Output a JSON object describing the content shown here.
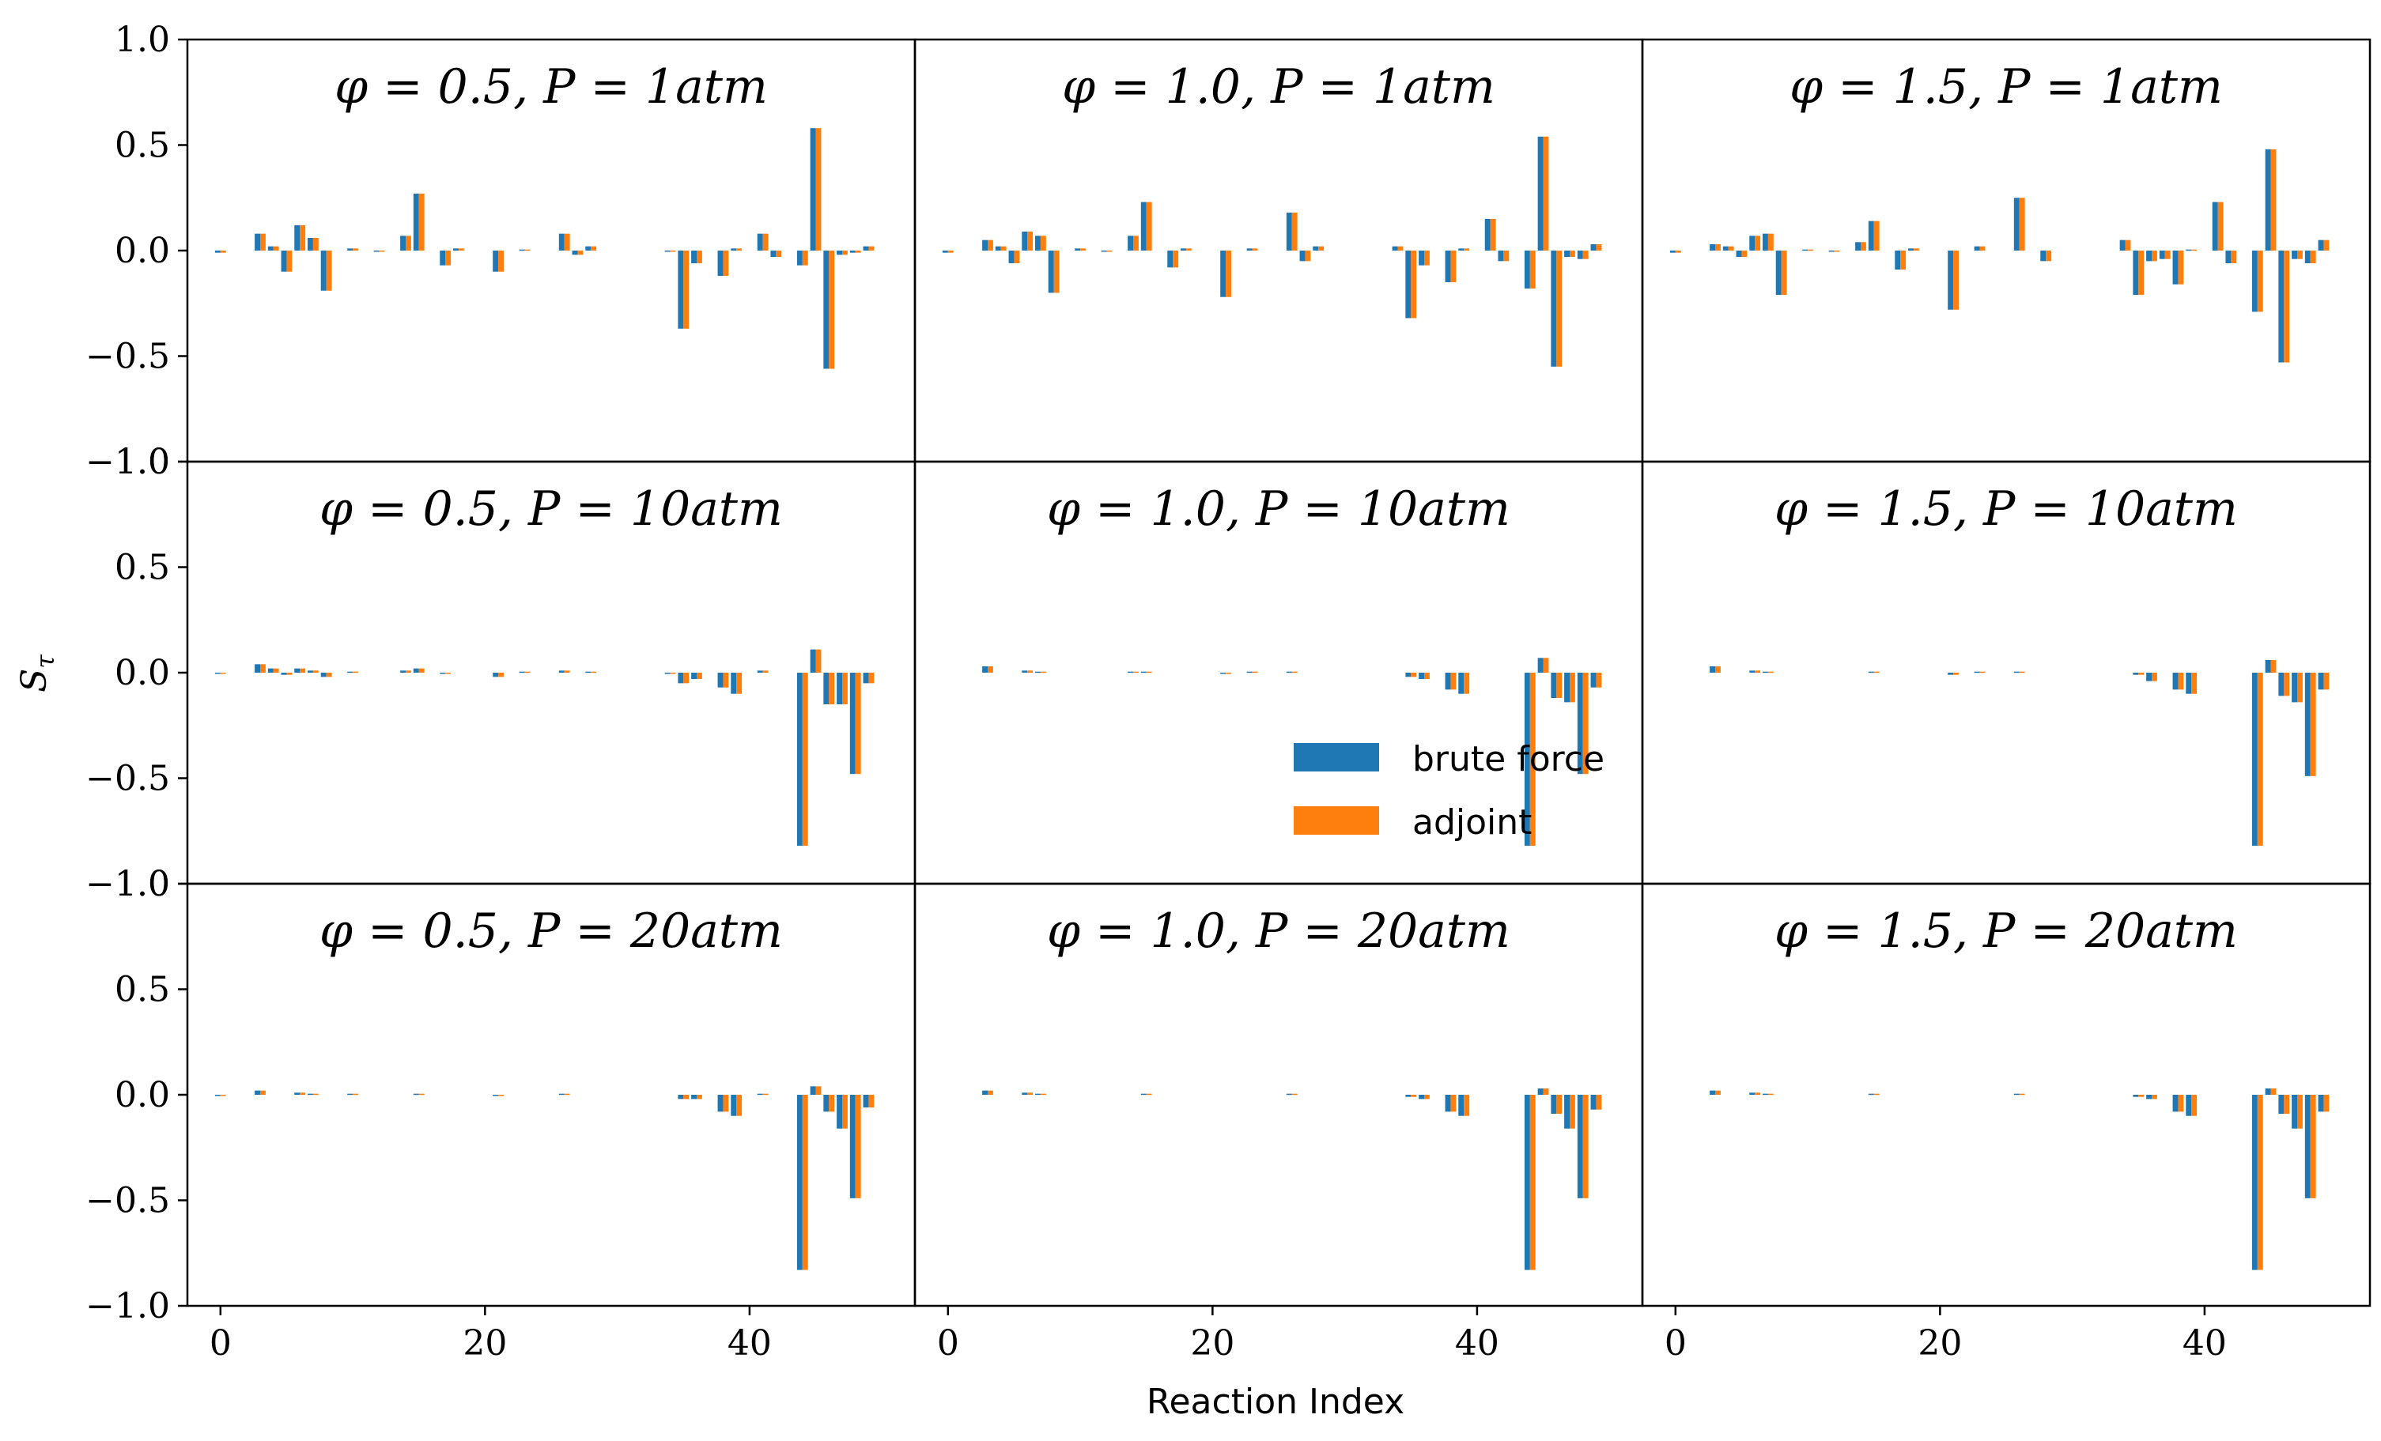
{
  "chart_data": {
    "type": "bar",
    "ylabel": "S_τ",
    "ylabel_main": "S",
    "ylabel_sub": "τ",
    "xlabel": "Reaction Index",
    "ylim": [
      -1.0,
      1.0
    ],
    "xlim": [
      -2.5,
      52.5
    ],
    "yticks": [
      -1.0,
      -0.5,
      0.0,
      0.5,
      1.0
    ],
    "ytick_labels": [
      "−1.0",
      "−0.5",
      "0.0",
      "0.5",
      "1.0"
    ],
    "xticks": [
      0,
      20,
      40
    ],
    "xtick_labels": [
      "0",
      "20",
      "40"
    ],
    "grid": false,
    "legend": {
      "position": "center-right",
      "entries": [
        {
          "name": "brute force",
          "color": "#1f77b4"
        },
        {
          "name": "adjoint",
          "color": "#ff7f0e"
        }
      ]
    },
    "colors": {
      "brute_force": "#1f77b4",
      "adjoint": "#ff7f0e"
    },
    "panels": [
      {
        "title": "φ = 0.5, P = 1atm",
        "indices": [
          0,
          3,
          4,
          5,
          6,
          7,
          8,
          10,
          12,
          14,
          15,
          17,
          18,
          21,
          23,
          26,
          27,
          28,
          34,
          35,
          36,
          38,
          39,
          41,
          42,
          44,
          45,
          46,
          47,
          48,
          49
        ],
        "brute_force": [
          -0.01,
          0.08,
          0.02,
          -0.1,
          0.12,
          0.06,
          -0.19,
          0.01,
          -0.005,
          0.07,
          0.27,
          -0.07,
          0.01,
          -0.1,
          0.005,
          0.08,
          -0.02,
          0.02,
          -0.005,
          -0.37,
          -0.06,
          -0.12,
          0.01,
          0.08,
          -0.03,
          -0.07,
          0.58,
          -0.56,
          -0.02,
          -0.01,
          0.02
        ],
        "adjoint": [
          -0.01,
          0.08,
          0.02,
          -0.1,
          0.12,
          0.06,
          -0.19,
          0.01,
          -0.005,
          0.07,
          0.27,
          -0.07,
          0.01,
          -0.1,
          0.005,
          0.08,
          -0.02,
          0.02,
          -0.005,
          -0.37,
          -0.06,
          -0.12,
          0.01,
          0.08,
          -0.03,
          -0.07,
          0.58,
          -0.56,
          -0.02,
          -0.01,
          0.02
        ]
      },
      {
        "title": "φ = 1.0, P = 1atm",
        "indices": [
          0,
          3,
          4,
          5,
          6,
          7,
          8,
          10,
          12,
          14,
          15,
          17,
          18,
          21,
          23,
          26,
          27,
          28,
          34,
          35,
          36,
          38,
          39,
          41,
          42,
          44,
          45,
          46,
          47,
          48,
          49
        ],
        "brute_force": [
          -0.01,
          0.05,
          0.02,
          -0.06,
          0.09,
          0.07,
          -0.2,
          0.01,
          -0.005,
          0.07,
          0.23,
          -0.08,
          0.01,
          -0.22,
          0.01,
          0.18,
          -0.05,
          0.02,
          0.02,
          -0.32,
          -0.07,
          -0.15,
          0.01,
          0.15,
          -0.05,
          -0.18,
          0.54,
          -0.55,
          -0.03,
          -0.04,
          0.03
        ],
        "adjoint": [
          -0.01,
          0.05,
          0.02,
          -0.06,
          0.09,
          0.07,
          -0.2,
          0.01,
          -0.005,
          0.07,
          0.23,
          -0.08,
          0.01,
          -0.22,
          0.01,
          0.18,
          -0.05,
          0.02,
          0.02,
          -0.32,
          -0.07,
          -0.15,
          0.01,
          0.15,
          -0.05,
          -0.18,
          0.54,
          -0.55,
          -0.03,
          -0.04,
          0.03
        ]
      },
      {
        "title": "φ = 1.5, P = 1atm",
        "indices": [
          0,
          3,
          4,
          5,
          6,
          7,
          8,
          10,
          12,
          14,
          15,
          17,
          18,
          21,
          23,
          26,
          28,
          34,
          35,
          36,
          37,
          38,
          39,
          41,
          42,
          44,
          45,
          46,
          47,
          48,
          49
        ],
        "brute_force": [
          -0.01,
          0.03,
          0.02,
          -0.03,
          0.07,
          0.08,
          -0.21,
          0.005,
          -0.005,
          0.04,
          0.14,
          -0.09,
          0.01,
          -0.28,
          0.02,
          0.25,
          -0.05,
          0.05,
          -0.21,
          -0.05,
          -0.04,
          -0.16,
          0.005,
          0.23,
          -0.06,
          -0.29,
          0.48,
          -0.53,
          -0.04,
          -0.06,
          0.05
        ],
        "adjoint": [
          -0.01,
          0.03,
          0.02,
          -0.03,
          0.07,
          0.08,
          -0.21,
          0.005,
          -0.005,
          0.04,
          0.14,
          -0.09,
          0.01,
          -0.28,
          0.02,
          0.25,
          -0.05,
          0.05,
          -0.21,
          -0.05,
          -0.04,
          -0.16,
          0.005,
          0.23,
          -0.06,
          -0.29,
          0.48,
          -0.53,
          -0.04,
          -0.06,
          0.05
        ]
      },
      {
        "title": "φ = 0.5, P = 10atm",
        "indices": [
          0,
          3,
          4,
          5,
          6,
          7,
          8,
          10,
          14,
          15,
          17,
          21,
          23,
          26,
          28,
          34,
          35,
          36,
          38,
          39,
          41,
          44,
          45,
          46,
          47,
          48,
          49
        ],
        "brute_force": [
          -0.005,
          0.04,
          0.02,
          -0.01,
          0.02,
          0.01,
          -0.02,
          0.005,
          0.01,
          0.02,
          -0.005,
          -0.02,
          0.005,
          0.01,
          0.005,
          -0.005,
          -0.05,
          -0.03,
          -0.07,
          -0.1,
          0.01,
          -0.82,
          0.11,
          -0.15,
          -0.15,
          -0.48,
          -0.05
        ],
        "adjoint": [
          -0.005,
          0.04,
          0.02,
          -0.01,
          0.02,
          0.01,
          -0.02,
          0.005,
          0.01,
          0.02,
          -0.005,
          -0.02,
          0.005,
          0.01,
          0.005,
          -0.005,
          -0.05,
          -0.03,
          -0.07,
          -0.1,
          0.01,
          -0.82,
          0.11,
          -0.15,
          -0.15,
          -0.48,
          -0.05
        ]
      },
      {
        "title": "φ = 1.0, P = 10atm",
        "indices": [
          3,
          6,
          7,
          14,
          15,
          21,
          23,
          26,
          35,
          36,
          38,
          39,
          44,
          45,
          46,
          47,
          48,
          49
        ],
        "brute_force": [
          0.03,
          0.01,
          0.005,
          0.005,
          0.005,
          -0.005,
          0.005,
          0.005,
          -0.02,
          -0.03,
          -0.08,
          -0.1,
          -0.82,
          0.07,
          -0.12,
          -0.14,
          -0.48,
          -0.07
        ],
        "adjoint": [
          0.03,
          0.01,
          0.005,
          0.005,
          0.005,
          -0.005,
          0.005,
          0.005,
          -0.02,
          -0.03,
          -0.08,
          -0.1,
          -0.82,
          0.07,
          -0.12,
          -0.14,
          -0.48,
          -0.07
        ]
      },
      {
        "title": "φ = 1.5, P = 10atm",
        "indices": [
          3,
          6,
          7,
          15,
          21,
          23,
          26,
          35,
          36,
          38,
          39,
          44,
          45,
          46,
          47,
          48,
          49
        ],
        "brute_force": [
          0.03,
          0.01,
          0.005,
          0.005,
          -0.01,
          0.005,
          0.005,
          -0.01,
          -0.04,
          -0.08,
          -0.1,
          -0.82,
          0.06,
          -0.11,
          -0.14,
          -0.49,
          -0.08
        ],
        "adjoint": [
          0.03,
          0.01,
          0.005,
          0.005,
          -0.01,
          0.005,
          0.005,
          -0.01,
          -0.04,
          -0.08,
          -0.1,
          -0.82,
          0.06,
          -0.11,
          -0.14,
          -0.49,
          -0.08
        ]
      },
      {
        "title": "φ = 0.5, P = 20atm",
        "indices": [
          0,
          3,
          6,
          7,
          10,
          15,
          21,
          26,
          35,
          36,
          38,
          39,
          41,
          44,
          45,
          46,
          47,
          48,
          49
        ],
        "brute_force": [
          -0.005,
          0.02,
          0.01,
          0.005,
          0.005,
          0.005,
          -0.005,
          0.005,
          -0.02,
          -0.02,
          -0.08,
          -0.1,
          0.005,
          -0.83,
          0.04,
          -0.08,
          -0.16,
          -0.49,
          -0.06
        ],
        "adjoint": [
          -0.005,
          0.02,
          0.01,
          0.005,
          0.005,
          0.005,
          -0.005,
          0.005,
          -0.02,
          -0.02,
          -0.08,
          -0.1,
          0.005,
          -0.83,
          0.04,
          -0.08,
          -0.16,
          -0.49,
          -0.06
        ]
      },
      {
        "title": "φ = 1.0, P = 20atm",
        "indices": [
          3,
          6,
          7,
          15,
          26,
          35,
          36,
          38,
          39,
          44,
          45,
          46,
          47,
          48,
          49
        ],
        "brute_force": [
          0.02,
          0.01,
          0.005,
          0.005,
          0.005,
          -0.01,
          -0.02,
          -0.08,
          -0.1,
          -0.83,
          0.03,
          -0.09,
          -0.16,
          -0.49,
          -0.07
        ],
        "adjoint": [
          0.02,
          0.01,
          0.005,
          0.005,
          0.005,
          -0.01,
          -0.02,
          -0.08,
          -0.1,
          -0.83,
          0.03,
          -0.09,
          -0.16,
          -0.49,
          -0.07
        ]
      },
      {
        "title": "φ = 1.5, P = 20atm",
        "indices": [
          3,
          6,
          7,
          15,
          26,
          35,
          36,
          38,
          39,
          44,
          45,
          46,
          47,
          48,
          49
        ],
        "brute_force": [
          0.02,
          0.01,
          0.005,
          0.005,
          0.005,
          -0.01,
          -0.02,
          -0.08,
          -0.1,
          -0.83,
          0.03,
          -0.09,
          -0.16,
          -0.49,
          -0.08
        ],
        "adjoint": [
          0.02,
          0.01,
          0.005,
          0.005,
          0.005,
          -0.01,
          -0.02,
          -0.08,
          -0.1,
          -0.83,
          0.03,
          -0.09,
          -0.16,
          -0.49,
          -0.08
        ]
      }
    ]
  }
}
